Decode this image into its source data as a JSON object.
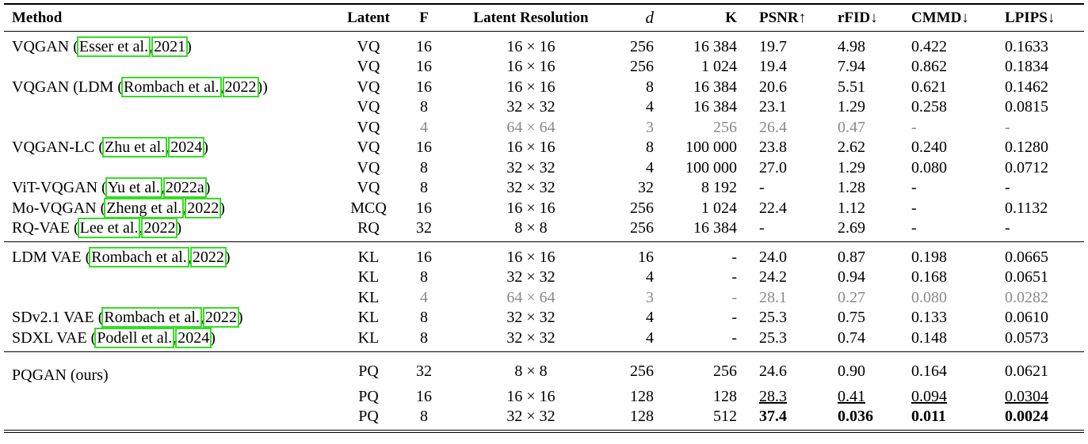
{
  "cite_box_color": "#33dd22",
  "table": {
    "header": [
      "Method",
      "Latent",
      "F",
      "Latent Resolution",
      "d",
      "K",
      "PSNR↑",
      "rFID↓",
      "CMMD↓",
      "LPIPS↓"
    ],
    "groups": [
      {
        "rows": [
          {
            "method": [
              "VQGAN (",
              "Esser et al.",
              ",",
              "2021",
              ")"
            ],
            "cells": [
              "VQ",
              "16",
              "16 × 16",
              "256",
              "16 384",
              "19.7",
              "4.98",
              "0.422",
              "0.1633"
            ]
          },
          {
            "cells": [
              "VQ",
              "16",
              "16 × 16",
              "256",
              "1 024",
              "19.4",
              "7.94",
              "0.862",
              "0.1834"
            ]
          },
          {
            "method": [
              "VQGAN (LDM (",
              "Rombach et al.",
              ",",
              "2022",
              "))"
            ],
            "cells": [
              "VQ",
              "16",
              "16 × 16",
              "8",
              "16 384",
              "20.6",
              "5.51",
              "0.621",
              "0.1462"
            ]
          },
          {
            "cells": [
              "VQ",
              "8",
              "32 × 32",
              "4",
              "16 384",
              "23.1",
              "1.29",
              "0.258",
              "0.0815"
            ]
          },
          {
            "cells": [
              "VQ",
              "4",
              "64 × 64",
              "3",
              "256",
              "26.4",
              "0.47",
              "-",
              "-"
            ],
            "style": "muted"
          },
          {
            "method": [
              "VQGAN-LC (",
              "Zhu et al.",
              ",",
              "2024",
              ")"
            ],
            "cells": [
              "VQ",
              "16",
              "16 × 16",
              "8",
              "100 000",
              "23.8",
              "2.62",
              "0.240",
              "0.1280"
            ]
          },
          {
            "cells": [
              "VQ",
              "8",
              "32 × 32",
              "4",
              "100 000",
              "27.0",
              "1.29",
              "0.080",
              "0.0712"
            ]
          },
          {
            "method": [
              "ViT-VQGAN (",
              "Yu et al.",
              ",",
              "2022a",
              ")"
            ],
            "cells": [
              "VQ",
              "8",
              "32 × 32",
              "32",
              "8 192",
              "-",
              "1.28",
              "-",
              "-"
            ]
          },
          {
            "method": [
              "Mo-VQGAN (",
              "Zheng et al.",
              ",",
              "2022",
              ")"
            ],
            "cells": [
              "MCQ",
              "16",
              "16 × 16",
              "256",
              "1 024",
              "22.4",
              "1.12",
              "-",
              "0.1132"
            ]
          },
          {
            "method": [
              "RQ-VAE (",
              "Lee et al.",
              ",",
              "2022",
              ")"
            ],
            "cells": [
              "RQ",
              "32",
              "8 × 8",
              "256",
              "16 384",
              "-",
              "2.69",
              "-",
              "-"
            ]
          }
        ]
      },
      {
        "rows": [
          {
            "method": [
              "LDM VAE (",
              "Rombach et al.",
              ",",
              "2022",
              ")"
            ],
            "cells": [
              "KL",
              "16",
              "16 × 16",
              "16",
              "-",
              "24.0",
              "0.87",
              "0.198",
              "0.0665"
            ]
          },
          {
            "cells": [
              "KL",
              "8",
              "32 × 32",
              "4",
              "-",
              "24.2",
              "0.94",
              "0.168",
              "0.0651"
            ]
          },
          {
            "cells": [
              "KL",
              "4",
              "64 × 64",
              "3",
              "-",
              "28.1",
              "0.27",
              "0.080",
              "0.0282"
            ],
            "style": "muted"
          },
          {
            "method": [
              "SDv2.1 VAE (",
              "Rombach et al.",
              ",",
              "2022",
              ")"
            ],
            "cells": [
              "KL",
              "8",
              "32 × 32",
              "4",
              "-",
              "25.3",
              "0.75",
              "0.133",
              "0.0610"
            ]
          },
          {
            "method": [
              "SDXL VAE (",
              "Podell et al.",
              ",",
              "2024",
              ")"
            ],
            "cells": [
              "KL",
              "8",
              "32 × 32",
              "4",
              "-",
              "25.3",
              "0.74",
              "0.148",
              "0.0573"
            ]
          }
        ]
      },
      {
        "rows": [
          {
            "method": [
              "PQGAN (ours)"
            ],
            "cells": [
              "PQ",
              "32",
              "8 × 8",
              "256",
              "256",
              "24.6",
              "0.90",
              "0.164",
              "0.0621"
            ]
          },
          {
            "cells": [
              "PQ",
              "16",
              "16 × 16",
              "128",
              "128",
              "28.3",
              "0.41",
              "0.094",
              "0.0304"
            ],
            "style": "underline"
          },
          {
            "cells": [
              "PQ",
              "8",
              "32 × 32",
              "128",
              "512",
              "37.4",
              "0.036",
              "0.011",
              "0.0024"
            ],
            "style": "bold"
          }
        ]
      }
    ]
  }
}
